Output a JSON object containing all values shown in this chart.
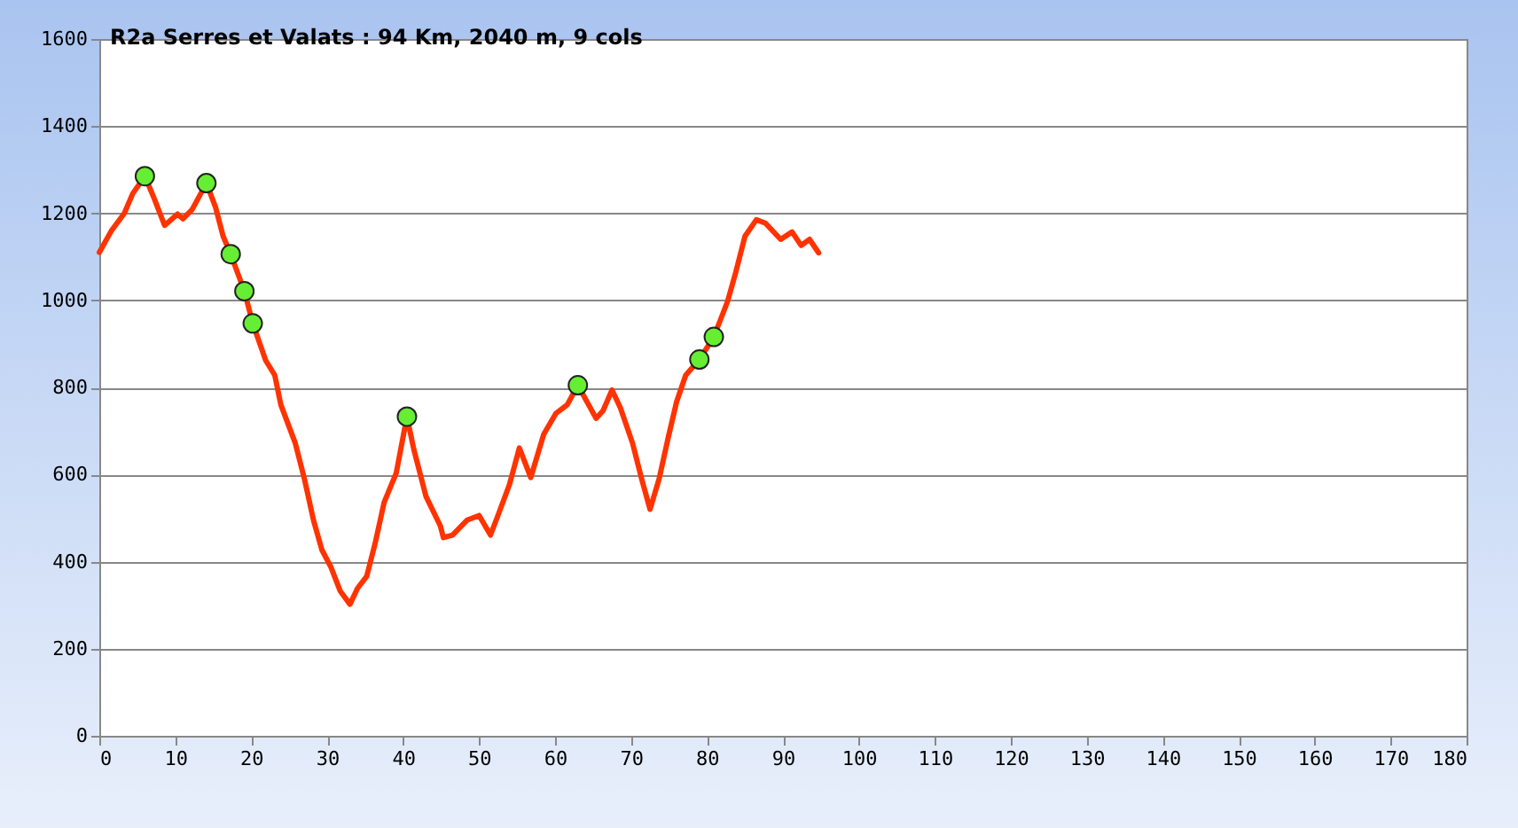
{
  "chart_data": {
    "type": "line",
    "title": "R2a Serres et Valats : 94  Km, 2040  m, 9 cols",
    "xlim": [
      0,
      180
    ],
    "xticks": [
      0,
      10,
      20,
      30,
      40,
      50,
      60,
      70,
      80,
      90,
      100,
      110,
      120,
      130,
      140,
      150,
      160,
      170,
      180
    ],
    "ylim": [
      0,
      1600
    ],
    "yticks": [
      0,
      200,
      400,
      600,
      800,
      1000,
      1200,
      1400,
      1600
    ],
    "grid": "y",
    "legend": false,
    "series": [
      {
        "color": "#ff3300",
        "marker": "none",
        "x": [
          0,
          1.6,
          3.3,
          4.4,
          6.0,
          7.2,
          8.6,
          10.3,
          11.0,
          12.2,
          14.1,
          15.3,
          16.3,
          17.3,
          19.1,
          20.2,
          21.9,
          23.1,
          23.9,
          25.8,
          27.0,
          28.2,
          29.3,
          30.5,
          31.7,
          33.0,
          34.0,
          35.2,
          36.3,
          37.5,
          39.1,
          40.5,
          41.4,
          43.0,
          44.9,
          45.3,
          46.5,
          48.4,
          50.0,
          51.5,
          52.7,
          54.0,
          55.3,
          56.8,
          58.5,
          60.1,
          61.6,
          63.0,
          65.4,
          66.3,
          67.5,
          68.6,
          70.2,
          71.4,
          72.5,
          73.7,
          74.9,
          76.0,
          77.2,
          79.0,
          80.9,
          82.7,
          83.8,
          85.0,
          86.5,
          87.7,
          89.7,
          91.2,
          92.4,
          93.5,
          94.7
        ],
        "values": [
          1110,
          1160,
          1200,
          1245,
          1285,
          1235,
          1172,
          1198,
          1187,
          1208,
          1269,
          1214,
          1147,
          1106,
          1021,
          947,
          862,
          828,
          760,
          672,
          590,
          495,
          427,
          387,
          333,
          302,
          339,
          366,
          441,
          536,
          604,
          733,
          658,
          550,
          482,
          455,
          461,
          495,
          506,
          461,
          516,
          577,
          661,
          593,
          692,
          740,
          760,
          805,
          729,
          746,
          794,
          753,
          672,
          590,
          520,
          590,
          685,
          767,
          828,
          864,
          916,
          997,
          1065,
          1147,
          1185,
          1177,
          1140,
          1157,
          1126,
          1140,
          1109
        ]
      },
      {
        "type": "scatter",
        "color": "#66ee33",
        "marker": "circle",
        "x": [
          6.0,
          14.1,
          17.3,
          19.1,
          20.2,
          40.5,
          63.0,
          79.0,
          80.9
        ],
        "values": [
          1285,
          1269,
          1106,
          1021,
          947,
          733,
          805,
          864,
          916
        ]
      }
    ]
  }
}
